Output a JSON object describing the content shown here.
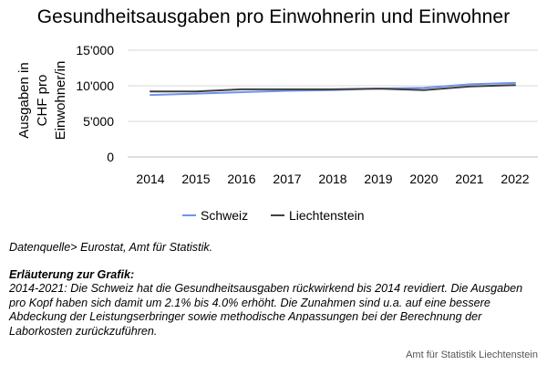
{
  "chart_data": {
    "type": "line",
    "title": "Gesundheitsausgaben pro Einwohnerin und Einwohner",
    "ylabel_lines": [
      "Ausgaben in",
      "CHF pro",
      "Einwohner/in"
    ],
    "xlabel": "",
    "categories": [
      "2014",
      "2015",
      "2016",
      "2017",
      "2018",
      "2019",
      "2020",
      "2021",
      "2022"
    ],
    "yticks": [
      0,
      5000,
      10000,
      15000
    ],
    "ytick_labels": [
      "0",
      "5'000",
      "10'000",
      "15'000"
    ],
    "ylim": [
      0,
      15000
    ],
    "grid": "horizontal",
    "legend_position": "bottom",
    "series": [
      {
        "name": "Schweiz",
        "color": "#6f93ea",
        "values": [
          8700,
          8900,
          9100,
          9300,
          9400,
          9600,
          9700,
          10200,
          10400
        ]
      },
      {
        "name": "Liechtenstein",
        "color": "#404040",
        "values": [
          9200,
          9200,
          9500,
          9500,
          9500,
          9600,
          9400,
          9900,
          10100
        ]
      }
    ]
  },
  "notes": {
    "source": "Datenquelle> Eurostat, Amt für Statistik.",
    "heading": "Erläuterung zur Grafik:",
    "text": "2014-2021: Die Schweiz hat die Gesundheitsausgaben rückwirkend bis 2014 revidiert. Die Ausgaben pro Kopf haben sich damit um 2.1% bis 4.0% erhöht. Die Zunahmen sind u.a. auf eine bessere Abdeckung der Leistungserbringer sowie methodische Anpassungen bei der Berechnung der Laborkosten zurückzuführen."
  },
  "footer": "Amt für Statistik Liechtenstein"
}
